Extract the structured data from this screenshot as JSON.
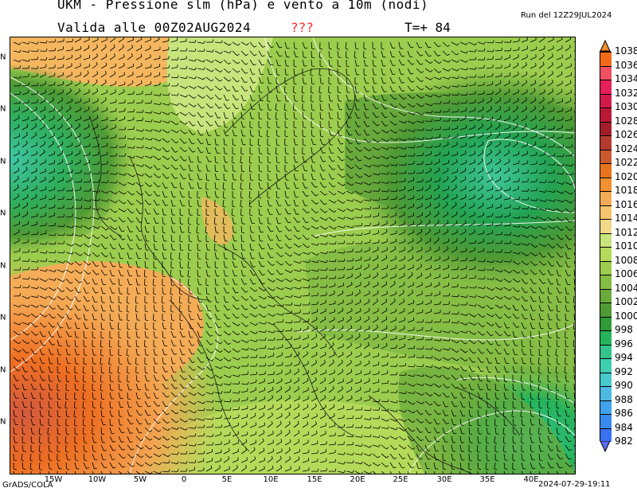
{
  "header": {
    "title": "UKM - Pressione slm (hPa) e vento a 10m (nodi)",
    "valid": "Valida alle 00Z02AUG2024",
    "unknown": "???",
    "lead": "T=+ 84",
    "run": "Run del 12Z29JUL2024"
  },
  "footer": {
    "credit": "GrADS/COLA",
    "stamp": "2024-07-29-19:11"
  },
  "map": {
    "lon_labels": [
      "15W",
      "10W",
      "5W",
      "0",
      "5E",
      "10E",
      "15E",
      "20E",
      "25E",
      "30E",
      "35E",
      "40E"
    ],
    "lat_labels": [
      "N",
      "N",
      "N",
      "N",
      "N",
      "N",
      "N",
      "N"
    ]
  },
  "colorbar": {
    "labels": [
      "1038",
      "1036",
      "1034",
      "1032",
      "1030",
      "1028",
      "1026",
      "1024",
      "1022",
      "1020",
      "1018",
      "1016",
      "1014",
      "1012",
      "1010",
      "1008",
      "1006",
      "1004",
      "1002",
      "1000",
      "998",
      "996",
      "994",
      "992",
      "990",
      "988",
      "986",
      "984",
      "982"
    ],
    "colors": [
      "#f26a18",
      "#ef4f5f",
      "#e5205a",
      "#d11a4b",
      "#bb1838",
      "#a21f2a",
      "#b53a2e",
      "#c9582f",
      "#e8731f",
      "#f39030",
      "#f4ab56",
      "#f6c46c",
      "#f2d98a",
      "#c7e47d",
      "#b4da5a",
      "#9ccd4e",
      "#85bd45",
      "#6aa93c",
      "#4f9a35",
      "#2f9a37",
      "#25b35a",
      "#33c48a",
      "#3fd0b0",
      "#47c9cd",
      "#4db9e3",
      "#3fa3ec",
      "#3a8bf0",
      "#3a70f2"
    ]
  }
}
